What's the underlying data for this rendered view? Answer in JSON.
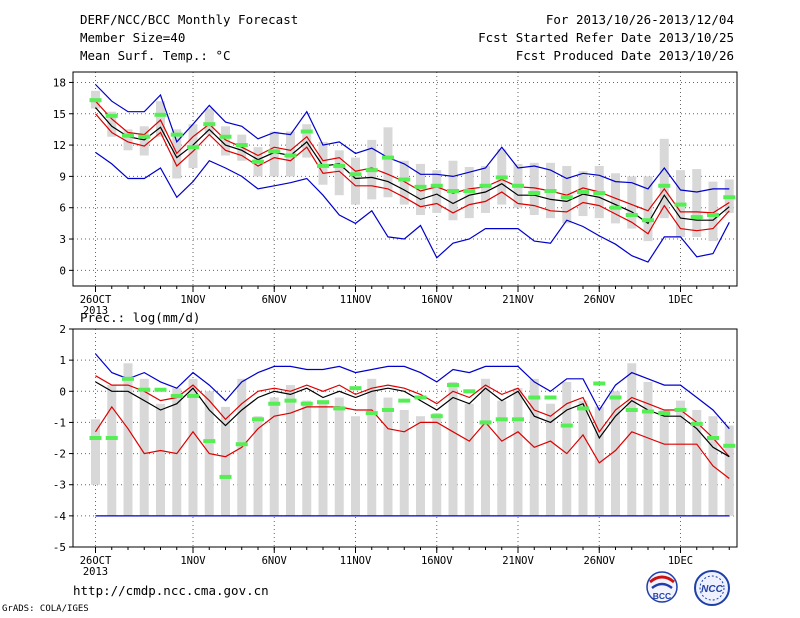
{
  "header": {
    "title": "DERF/NCC/BCC Monthly Forecast",
    "member_size": "Member Size=40",
    "variable": "Mean Surf. Temp.: °C",
    "forecast_range": "For 2013/10/26-2013/12/04",
    "fcst_started": "Fcst Started Refer Date 2013/10/25",
    "fcst_produced": "Fcst Produced Date 2013/10/26"
  },
  "footer": {
    "url": "http://cmdp.ncc.cma.gov.cn",
    "credit": "GrADS: COLA/IGES"
  },
  "logos": {
    "left": "BCC",
    "right": "NCC"
  },
  "colors": {
    "max_line": "#0000cc",
    "upper_line": "#dd0000",
    "mean_line": "#000000",
    "lower_line": "#dd0000",
    "min_line": "#0000cc",
    "bar": "#d8d8d8",
    "marker": "#55ee55",
    "grid": "#666666"
  },
  "chart_data": [
    {
      "type": "line",
      "ylabel": "",
      "ylim": [
        -1.5,
        19
      ],
      "yticks": [
        0,
        3,
        6,
        9,
        12,
        15,
        18
      ],
      "x_tick_labels": [
        "26OCT",
        "1NOV",
        "6NOV",
        "11NOV",
        "16NOV",
        "21NOV",
        "26NOV",
        "1DEC"
      ],
      "x_tick_days": [
        0,
        6,
        11,
        16,
        21,
        26,
        31,
        36
      ],
      "x_year_label": "2013",
      "x": [
        0,
        1,
        2,
        3,
        4,
        5,
        6,
        7,
        8,
        9,
        10,
        11,
        12,
        13,
        14,
        15,
        16,
        17,
        18,
        19,
        20,
        21,
        22,
        23,
        24,
        25,
        26,
        27,
        28,
        29,
        30,
        31,
        32,
        33,
        34,
        35,
        36,
        37,
        38,
        39
      ],
      "series": [
        {
          "role": "max",
          "values": [
            17.8,
            16.2,
            15.2,
            15.2,
            16.8,
            12.3,
            14.0,
            15.8,
            14.2,
            13.8,
            12.6,
            13.2,
            13.0,
            15.2,
            12.0,
            12.3,
            11.2,
            11.7,
            10.8,
            10.2,
            9.2,
            9.2,
            9.0,
            9.4,
            9.8,
            11.8,
            9.8,
            10.0,
            9.6,
            8.8,
            9.3,
            9.1,
            8.5,
            8.4,
            7.8,
            9.8,
            7.7,
            7.5,
            7.8,
            7.8
          ]
        },
        {
          "role": "upper",
          "values": [
            16.2,
            14.5,
            13.2,
            13.0,
            14.4,
            11.2,
            12.8,
            14.0,
            12.5,
            11.8,
            11.0,
            11.8,
            11.5,
            12.8,
            10.5,
            10.8,
            9.5,
            9.8,
            9.2,
            8.5,
            7.6,
            8.0,
            7.4,
            7.8,
            8.0,
            8.7,
            8.0,
            7.9,
            7.6,
            7.2,
            7.9,
            7.5,
            6.9,
            6.3,
            5.7,
            7.8,
            5.6,
            5.6,
            5.5,
            6.5
          ]
        },
        {
          "role": "mean",
          "values": [
            15.6,
            13.8,
            12.8,
            12.5,
            13.7,
            10.8,
            12.0,
            13.5,
            12.0,
            11.5,
            10.6,
            11.3,
            11.0,
            12.3,
            10.0,
            10.2,
            8.8,
            8.9,
            8.5,
            7.7,
            6.8,
            7.3,
            6.4,
            7.2,
            7.5,
            8.3,
            7.2,
            7.2,
            6.8,
            6.6,
            7.3,
            7.0,
            6.3,
            5.6,
            4.5,
            7.2,
            5.0,
            4.8,
            4.8,
            6.1
          ]
        },
        {
          "role": "lower",
          "values": [
            15.0,
            13.2,
            12.3,
            11.9,
            13.2,
            10.0,
            11.4,
            13.0,
            11.5,
            11.0,
            10.0,
            10.8,
            10.5,
            11.8,
            9.3,
            9.5,
            8.1,
            8.1,
            7.8,
            7.0,
            6.1,
            6.4,
            5.5,
            6.3,
            6.6,
            7.5,
            6.4,
            6.2,
            5.7,
            5.6,
            6.5,
            6.2,
            5.4,
            4.6,
            3.5,
            6.2,
            4.0,
            3.8,
            4.0,
            5.7
          ]
        },
        {
          "role": "min",
          "values": [
            11.3,
            10.2,
            8.8,
            8.8,
            9.8,
            7.0,
            8.5,
            10.5,
            9.8,
            9.0,
            7.8,
            8.1,
            8.4,
            8.8,
            7.2,
            5.3,
            4.5,
            5.7,
            3.2,
            3.0,
            4.3,
            1.2,
            2.6,
            3.0,
            4.0,
            4.0,
            4.0,
            2.8,
            2.6,
            4.8,
            4.2,
            3.3,
            2.5,
            1.4,
            0.8,
            3.2,
            3.2,
            1.3,
            1.6,
            4.6
          ]
        }
      ],
      "bars": {
        "low": [
          15.5,
          12.8,
          11.5,
          11.0,
          12.8,
          8.8,
          9.8,
          13.0,
          11.0,
          10.5,
          9.0,
          9.0,
          9.0,
          10.8,
          8.2,
          7.2,
          6.3,
          6.8,
          7.0,
          6.3,
          5.3,
          5.5,
          4.8,
          5.0,
          5.5,
          6.3,
          6.0,
          5.3,
          5.0,
          4.5,
          5.2,
          5.0,
          4.5,
          4.0,
          2.8,
          5.0,
          3.2,
          3.2,
          2.8,
          5.5
        ],
        "high": [
          17.2,
          15.2,
          13.5,
          13.8,
          16.2,
          13.5,
          14.0,
          15.5,
          13.8,
          13.0,
          11.8,
          13.3,
          13.3,
          14.0,
          12.3,
          11.5,
          10.8,
          12.5,
          13.7,
          10.5,
          10.2,
          9.6,
          10.5,
          9.9,
          10.0,
          11.6,
          10.2,
          10.3,
          10.3,
          10.0,
          9.5,
          10.0,
          9.3,
          9.0,
          9.0,
          12.6,
          9.6,
          9.7,
          8.5,
          8.7
        ]
      },
      "markers": [
        16.3,
        14.8,
        12.9,
        12.8,
        14.9,
        13.0,
        11.8,
        14.0,
        12.8,
        12.0,
        10.4,
        11.4,
        11.0,
        13.3,
        10.0,
        10.0,
        9.2,
        9.6,
        10.8,
        8.7,
        8.0,
        8.1,
        7.6,
        7.6,
        8.1,
        8.9,
        8.1,
        7.4,
        7.6,
        7.0,
        7.5,
        7.4,
        6.0,
        5.3,
        4.8,
        8.1,
        6.3,
        5.1,
        5.3,
        7.0
      ]
    },
    {
      "type": "line",
      "ylabel": "Prec.: log(mm/d)",
      "ylim": [
        -5,
        2
      ],
      "yticks": [
        -5,
        -4,
        -3,
        -2,
        -1,
        0,
        1,
        2
      ],
      "x_tick_labels": [
        "26OCT",
        "1NOV",
        "6NOV",
        "11NOV",
        "16NOV",
        "21NOV",
        "26NOV",
        "1DEC"
      ],
      "x_tick_days": [
        0,
        6,
        11,
        16,
        21,
        26,
        31,
        36
      ],
      "x_year_label": "2013",
      "x": [
        0,
        1,
        2,
        3,
        4,
        5,
        6,
        7,
        8,
        9,
        10,
        11,
        12,
        13,
        14,
        15,
        16,
        17,
        18,
        19,
        20,
        21,
        22,
        23,
        24,
        25,
        26,
        27,
        28,
        29,
        30,
        31,
        32,
        33,
        34,
        35,
        36,
        37,
        38,
        39
      ],
      "series": [
        {
          "role": "max",
          "values": [
            1.2,
            0.6,
            0.4,
            0.6,
            0.3,
            0.1,
            0.6,
            0.2,
            -0.3,
            0.3,
            0.6,
            0.8,
            0.8,
            0.7,
            0.7,
            0.8,
            0.6,
            0.7,
            0.8,
            0.8,
            0.6,
            0.3,
            0.7,
            0.6,
            0.8,
            0.8,
            0.8,
            0.3,
            0.0,
            0.4,
            0.4,
            -0.6,
            0.2,
            0.6,
            0.4,
            0.2,
            0.2,
            -0.2,
            -0.6,
            -1.2
          ]
        },
        {
          "role": "upper",
          "values": [
            0.5,
            0.2,
            0.2,
            0.0,
            -0.3,
            -0.2,
            0.2,
            -0.3,
            -0.9,
            -0.4,
            0.0,
            0.1,
            0.0,
            0.2,
            0.0,
            0.2,
            -0.1,
            0.1,
            0.2,
            0.1,
            -0.1,
            -0.4,
            0.0,
            -0.2,
            0.2,
            -0.1,
            0.1,
            -0.6,
            -0.8,
            -0.4,
            -0.2,
            -1.3,
            -0.6,
            -0.2,
            -0.4,
            -0.6,
            -0.6,
            -1.0,
            -1.5,
            -2.1
          ]
        },
        {
          "role": "mean",
          "values": [
            0.3,
            0.0,
            0.0,
            -0.3,
            -0.6,
            -0.4,
            0.1,
            -0.6,
            -1.1,
            -0.6,
            -0.2,
            0.0,
            -0.1,
            0.1,
            -0.2,
            0.0,
            -0.2,
            0.0,
            0.1,
            0.0,
            -0.3,
            -0.6,
            -0.2,
            -0.4,
            0.1,
            -0.3,
            0.0,
            -0.8,
            -1.0,
            -0.6,
            -0.4,
            -1.5,
            -0.8,
            -0.3,
            -0.6,
            -0.8,
            -0.8,
            -1.2,
            -1.8,
            -2.1
          ]
        },
        {
          "role": "lower",
          "values": [
            -1.3,
            -0.5,
            -1.2,
            -2.0,
            -1.9,
            -2.0,
            -1.3,
            -2.0,
            -2.1,
            -1.8,
            -1.2,
            -0.8,
            -0.7,
            -0.5,
            -0.5,
            -0.5,
            -0.6,
            -0.6,
            -1.2,
            -1.3,
            -1.0,
            -1.0,
            -1.3,
            -1.6,
            -1.0,
            -1.6,
            -1.3,
            -1.8,
            -1.6,
            -2.0,
            -1.4,
            -2.3,
            -1.9,
            -1.3,
            -1.5,
            -1.7,
            -1.7,
            -1.7,
            -2.4,
            -2.8
          ]
        },
        {
          "role": "min",
          "values": [
            -4,
            -4,
            -4,
            -4,
            -4,
            -4,
            -4,
            -4,
            -4,
            -4,
            -4,
            -4,
            -4,
            -4,
            -4,
            -4,
            -4,
            -4,
            -4,
            -4,
            -4,
            -4,
            -4,
            -4,
            -4,
            -4,
            -4,
            -4,
            -4,
            -4,
            -4,
            -4,
            -4,
            -4,
            -4,
            -4,
            -4,
            -4,
            -4,
            -4
          ]
        }
      ],
      "bars": {
        "low": [
          -3.0,
          -4.0,
          -4.0,
          -4.0,
          -4.0,
          -4.0,
          -4.0,
          -4.0,
          -4.0,
          -4.0,
          -4.0,
          -4.0,
          -4.0,
          -4.0,
          -4.0,
          -4.0,
          -4.0,
          -4.0,
          -4.0,
          -4.0,
          -4.0,
          -4.0,
          -4.0,
          -4.0,
          -4.0,
          -4.0,
          -4.0,
          -4.0,
          -4.0,
          -4.0,
          -4.0,
          -4.0,
          -4.0,
          -4.0,
          -4.0,
          -4.0,
          -4.0,
          -4.0,
          -4.0,
          -4.0
        ],
        "high": [
          -0.9,
          0.2,
          0.9,
          0.4,
          -0.4,
          0.1,
          0.4,
          0.0,
          -0.5,
          0.4,
          -0.8,
          -0.2,
          0.2,
          -0.3,
          -0.3,
          -0.2,
          -0.8,
          0.4,
          -0.2,
          -0.6,
          -0.8,
          -0.7,
          0.3,
          -0.4,
          0.4,
          -0.3,
          0.1,
          0.4,
          -0.4,
          0.3,
          -0.3,
          -0.5,
          0.0,
          0.9,
          0.3,
          -0.6,
          -0.3,
          -0.6,
          -0.8,
          -1.1
        ]
      },
      "markers": [
        -1.5,
        -1.5,
        0.4,
        0.05,
        0.05,
        -0.15,
        -0.15,
        -1.6,
        -2.75,
        -1.7,
        -0.9,
        -0.4,
        -0.3,
        -0.4,
        -0.35,
        -0.55,
        0.1,
        -0.7,
        -0.6,
        -0.3,
        -0.2,
        -0.8,
        0.2,
        0.0,
        -1.0,
        -0.9,
        -0.9,
        -0.2,
        -0.2,
        -1.1,
        -0.55,
        0.25,
        -0.2,
        -0.6,
        -0.65,
        -0.7,
        -0.6,
        -1.05,
        -1.5,
        -1.75
      ]
    }
  ]
}
